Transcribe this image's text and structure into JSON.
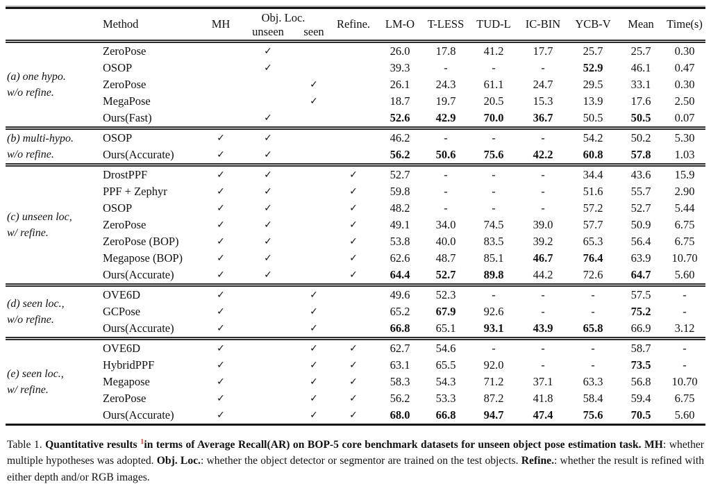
{
  "colors": {
    "footnote": "#ee3b2e",
    "rule": "#151515"
  },
  "caption": {
    "prefix": "Table 1. ",
    "bold_intro": "Quantitative results ",
    "footnote": "1",
    "bold_rest": "in terms of Average Recall(AR) on BOP-5 core benchmark datasets for unseen object pose estimation task. ",
    "mh_term": "MH",
    "mh_def": ": whether multiple hypotheses was adopted. ",
    "objloc_term": "Obj. Loc.",
    "objloc_def": ": whether the object detector or segmentor are trained on the test objects. ",
    "refine_term": "Refine.",
    "refine_def": ": whether the result is refined with either depth and/or RGB images."
  },
  "table": {
    "check_icon": "✓",
    "header": {
      "method": "Method",
      "mh": "MH",
      "obj_loc": "Obj. Loc.",
      "unseen": "unseen",
      "seen": "seen",
      "refine": "Refine.",
      "datasets": [
        "LM-O",
        "T-LESS",
        "TUD-L",
        "IC-BIN",
        "YCB-V"
      ],
      "mean": "Mean",
      "time": "Time(s)"
    },
    "sections": [
      {
        "label_lines": [
          "(a) one hypo.",
          "w/o refine."
        ],
        "rows": [
          {
            "method": "ZeroPose",
            "checks": [
              0,
              1,
              0,
              0
            ],
            "values": [
              "26.0",
              "17.8",
              "41.2",
              "17.7",
              "25.7",
              "25.7",
              "0.30"
            ],
            "bold": [
              0,
              0,
              0,
              0,
              0,
              0,
              0
            ]
          },
          {
            "method": "OSOP",
            "checks": [
              0,
              1,
              0,
              0
            ],
            "values": [
              "39.3",
              "-",
              "-",
              "-",
              "52.9",
              "46.1",
              "0.47"
            ],
            "bold": [
              0,
              0,
              0,
              0,
              1,
              0,
              0
            ]
          },
          {
            "method": "ZeroPose",
            "checks": [
              0,
              0,
              1,
              0
            ],
            "values": [
              "26.1",
              "24.3",
              "61.1",
              "24.7",
              "29.5",
              "33.1",
              "0.30"
            ],
            "bold": [
              0,
              0,
              0,
              0,
              0,
              0,
              0
            ]
          },
          {
            "method": "MegaPose",
            "checks": [
              0,
              0,
              1,
              0
            ],
            "values": [
              "18.7",
              "19.7",
              "20.5",
              "15.3",
              "13.9",
              "17.6",
              "2.50"
            ],
            "bold": [
              0,
              0,
              0,
              0,
              0,
              0,
              0
            ]
          },
          {
            "method": "Ours(Fast)",
            "checks": [
              0,
              1,
              0,
              0
            ],
            "values": [
              "52.6",
              "42.9",
              "70.0",
              "36.7",
              "50.5",
              "50.5",
              "0.07"
            ],
            "bold": [
              1,
              1,
              1,
              1,
              0,
              1,
              0
            ]
          }
        ]
      },
      {
        "label_lines": [
          "(b) multi-hypo.",
          "w/o refine."
        ],
        "rows": [
          {
            "method": "OSOP",
            "checks": [
              1,
              1,
              0,
              0
            ],
            "values": [
              "46.2",
              "-",
              "-",
              "-",
              "54.2",
              "50.2",
              "5.30"
            ],
            "bold": [
              0,
              0,
              0,
              0,
              0,
              0,
              0
            ]
          },
          {
            "method": "Ours(Accurate)",
            "checks": [
              1,
              1,
              0,
              0
            ],
            "values": [
              "56.2",
              "50.6",
              "75.6",
              "42.2",
              "60.8",
              "57.8",
              "1.03"
            ],
            "bold": [
              1,
              1,
              1,
              1,
              1,
              1,
              0
            ]
          }
        ]
      },
      {
        "label_lines": [
          "(c) unseen loc,",
          "w/ refine."
        ],
        "rows": [
          {
            "method": "DrostPPF",
            "checks": [
              1,
              1,
              0,
              1
            ],
            "values": [
              "52.7",
              "-",
              "-",
              "-",
              "34.4",
              "43.6",
              "15.9"
            ],
            "bold": [
              0,
              0,
              0,
              0,
              0,
              0,
              0
            ]
          },
          {
            "method": "PPF + Zephyr",
            "checks": [
              1,
              1,
              0,
              1
            ],
            "values": [
              "59.8",
              "-",
              "-",
              "-",
              "51.6",
              "55.7",
              "2.90"
            ],
            "bold": [
              0,
              0,
              0,
              0,
              0,
              0,
              0
            ]
          },
          {
            "method": "OSOP",
            "checks": [
              1,
              1,
              0,
              1
            ],
            "values": [
              "48.2",
              "-",
              "-",
              "-",
              "57.2",
              "52.7",
              "5.44"
            ],
            "bold": [
              0,
              0,
              0,
              0,
              0,
              0,
              0
            ]
          },
          {
            "method": "ZeroPose",
            "checks": [
              1,
              1,
              0,
              1
            ],
            "values": [
              "49.1",
              "34.0",
              "74.5",
              "39.0",
              "57.7",
              "50.9",
              "6.75"
            ],
            "bold": [
              0,
              0,
              0,
              0,
              0,
              0,
              0
            ]
          },
          {
            "method": "ZeroPose (BOP)",
            "checks": [
              1,
              1,
              0,
              1
            ],
            "values": [
              "53.8",
              "40.0",
              "83.5",
              "39.2",
              "65.3",
              "56.4",
              "6.75"
            ],
            "bold": [
              0,
              0,
              0,
              0,
              0,
              0,
              0
            ]
          },
          {
            "method": "Megapose (BOP)",
            "checks": [
              1,
              1,
              0,
              1
            ],
            "values": [
              "62.6",
              "48.7",
              "85.1",
              "46.7",
              "76.4",
              "63.9",
              "10.70"
            ],
            "bold": [
              0,
              0,
              0,
              1,
              1,
              0,
              0
            ]
          },
          {
            "method": "Ours(Accurate)",
            "checks": [
              1,
              1,
              0,
              1
            ],
            "values": [
              "64.4",
              "52.7",
              "89.8",
              "44.2",
              "72.6",
              "64.7",
              "5.60"
            ],
            "bold": [
              1,
              1,
              1,
              0,
              0,
              1,
              0
            ]
          }
        ]
      },
      {
        "label_lines": [
          "(d) seen loc.,",
          "w/o refine."
        ],
        "rows": [
          {
            "method": "OVE6D",
            "checks": [
              1,
              0,
              1,
              0
            ],
            "values": [
              "49.6",
              "52.3",
              "-",
              "-",
              "-",
              "57.5",
              "-"
            ],
            "bold": [
              0,
              0,
              0,
              0,
              0,
              0,
              0
            ]
          },
          {
            "method": "GCPose",
            "checks": [
              1,
              0,
              1,
              0
            ],
            "values": [
              "65.2",
              "67.9",
              "92.6",
              "-",
              "-",
              "75.2",
              "-"
            ],
            "bold": [
              0,
              1,
              0,
              0,
              0,
              1,
              0
            ]
          },
          {
            "method": "Ours(Accurate)",
            "checks": [
              1,
              0,
              1,
              0
            ],
            "values": [
              "66.8",
              "65.1",
              "93.1",
              "43.9",
              "65.8",
              "66.9",
              "3.12"
            ],
            "bold": [
              1,
              0,
              1,
              1,
              1,
              0,
              0
            ]
          }
        ]
      },
      {
        "label_lines": [
          "(e) seen loc.,",
          "w/ refine."
        ],
        "rows": [
          {
            "method": "OVE6D",
            "checks": [
              1,
              0,
              1,
              1
            ],
            "values": [
              "62.7",
              "54.6",
              "-",
              "-",
              "-",
              "58.7",
              "-"
            ],
            "bold": [
              0,
              0,
              0,
              0,
              0,
              0,
              0
            ]
          },
          {
            "method": "HybridPPF",
            "checks": [
              1,
              0,
              1,
              1
            ],
            "values": [
              "63.1",
              "65.5",
              "92.0",
              "-",
              "-",
              "73.5",
              "-"
            ],
            "bold": [
              0,
              0,
              0,
              0,
              0,
              1,
              0
            ]
          },
          {
            "method": "Megapose",
            "checks": [
              1,
              0,
              1,
              1
            ],
            "values": [
              "58.3",
              "54.3",
              "71.2",
              "37.1",
              "63.3",
              "56.8",
              "10.70"
            ],
            "bold": [
              0,
              0,
              0,
              0,
              0,
              0,
              0
            ]
          },
          {
            "method": "ZeroPose",
            "checks": [
              1,
              0,
              1,
              1
            ],
            "values": [
              "56.2",
              "53.3",
              "87.2",
              "41.8",
              "58.4",
              "59.4",
              "6.75"
            ],
            "bold": [
              0,
              0,
              0,
              0,
              0,
              0,
              0
            ]
          },
          {
            "method": "Ours(Accurate)",
            "checks": [
              1,
              0,
              1,
              1
            ],
            "values": [
              "68.0",
              "66.8",
              "94.7",
              "47.4",
              "75.6",
              "70.5",
              "5.60"
            ],
            "bold": [
              1,
              1,
              1,
              1,
              1,
              1,
              0
            ]
          }
        ]
      }
    ]
  }
}
